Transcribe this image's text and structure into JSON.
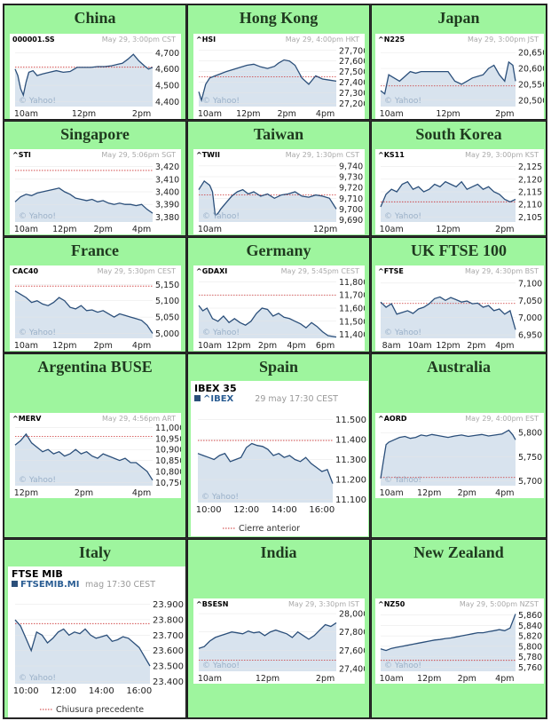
{
  "colors": {
    "cell_bg": "#9ef59e",
    "plot_fill": "#d8e3ee",
    "line": "#2b4f7a",
    "prev_close_line": "#cc3333",
    "watermark": "#9ab0c8"
  },
  "watermark_text": "© Yahoo!",
  "chart_data": [
    {
      "type": "line",
      "title": "China",
      "symbol": "000001.SS",
      "timestamp": "May 29, 3:00pm CST",
      "y_ticks": [
        "4,700",
        "4,600",
        "4,500",
        "4,400"
      ],
      "ylim": [
        4370,
        4740
      ],
      "x_ticks": [
        "10am",
        "12pm",
        "2pm"
      ],
      "prev_close": 4611,
      "x": [
        0,
        0.02,
        0.04,
        0.06,
        0.08,
        0.1,
        0.13,
        0.16,
        0.2,
        0.25,
        0.3,
        0.35,
        0.4,
        0.45,
        0.5,
        0.55,
        0.6,
        0.65,
        0.7,
        0.75,
        0.78,
        0.82,
        0.86,
        0.9,
        0.94,
        0.97,
        1.0
      ],
      "y": [
        4600,
        4560,
        4480,
        4440,
        4520,
        4580,
        4590,
        4560,
        4570,
        4580,
        4590,
        4580,
        4585,
        4610,
        4610,
        4610,
        4615,
        4615,
        4620,
        4630,
        4635,
        4660,
        4690,
        4650,
        4620,
        4600,
        4610
      ]
    },
    {
      "type": "line",
      "title": "Hong Kong",
      "symbol": "^HSI",
      "timestamp": "May 29, 4:00pm HKT",
      "y_ticks": [
        "27,700",
        "27,600",
        "27,500",
        "27,400",
        "27,300",
        "27,200"
      ],
      "ylim": [
        27170,
        27740
      ],
      "x_ticks": [
        "10am",
        "12pm",
        "2pm",
        "4pm"
      ],
      "prev_close": 27450,
      "x": [
        0,
        0.02,
        0.05,
        0.08,
        0.12,
        0.16,
        0.2,
        0.25,
        0.3,
        0.35,
        0.4,
        0.45,
        0.5,
        0.55,
        0.58,
        0.62,
        0.66,
        0.7,
        0.75,
        0.8,
        0.85,
        0.9,
        0.95,
        1.0
      ],
      "y": [
        27310,
        27230,
        27380,
        27440,
        27460,
        27480,
        27500,
        27520,
        27540,
        27560,
        27570,
        27545,
        27530,
        27550,
        27580,
        27610,
        27600,
        27560,
        27440,
        27380,
        27460,
        27430,
        27420,
        27410
      ]
    },
    {
      "type": "line",
      "title": "Japan",
      "symbol": "^N225",
      "timestamp": "May 29, 3:00pm JST",
      "y_ticks": [
        "20,650",
        "20,600",
        "20,550",
        "20,500"
      ],
      "ylim": [
        20480,
        20670
      ],
      "x_ticks": [
        "10am",
        "12pm",
        "2pm"
      ],
      "prev_close": 20545,
      "x": [
        0,
        0.03,
        0.06,
        0.1,
        0.14,
        0.18,
        0.22,
        0.26,
        0.3,
        0.34,
        0.38,
        0.42,
        0.46,
        0.5,
        0.55,
        0.6,
        0.64,
        0.68,
        0.72,
        0.76,
        0.8,
        0.84,
        0.88,
        0.92,
        0.95,
        0.98,
        1.0
      ],
      "y": [
        20530,
        20520,
        20580,
        20570,
        20560,
        20575,
        20590,
        20585,
        20590,
        20590,
        20590,
        20590,
        20590,
        20590,
        20560,
        20550,
        20560,
        20570,
        20575,
        20580,
        20600,
        20610,
        20580,
        20560,
        20620,
        20610,
        20560
      ]
    },
    {
      "type": "line",
      "title": "Singapore",
      "symbol": "^STI",
      "timestamp": "May 29, 5:06pm SGT",
      "y_ticks": [
        "3,420",
        "3,410",
        "3,400",
        "3,390",
        "3,380"
      ],
      "ylim": [
        3376,
        3424
      ],
      "x_ticks": [
        "10am",
        "12pm",
        "2pm",
        "4pm"
      ],
      "prev_close": 3417,
      "x": [
        0,
        0.04,
        0.08,
        0.12,
        0.16,
        0.2,
        0.24,
        0.28,
        0.32,
        0.36,
        0.4,
        0.44,
        0.48,
        0.52,
        0.56,
        0.6,
        0.64,
        0.68,
        0.72,
        0.76,
        0.8,
        0.84,
        0.88,
        0.92,
        0.96,
        1.0
      ],
      "y": [
        3392,
        3396,
        3398,
        3397,
        3399,
        3400,
        3401,
        3402,
        3403,
        3400,
        3398,
        3395,
        3394,
        3393,
        3394,
        3392,
        3393,
        3391,
        3390,
        3391,
        3390,
        3390,
        3389,
        3390,
        3386,
        3383
      ]
    },
    {
      "type": "line",
      "title": "Taiwan",
      "symbol": "^TWII",
      "timestamp": "May 29, 1:30pm CST",
      "y_ticks": [
        "9,740",
        "9,730",
        "9,720",
        "9,710",
        "9,700",
        "9,690"
      ],
      "ylim": [
        9688,
        9744
      ],
      "x_ticks": [
        "10am",
        "12pm"
      ],
      "prev_close": 9713,
      "x": [
        0,
        0.04,
        0.08,
        0.1,
        0.12,
        0.14,
        0.16,
        0.2,
        0.24,
        0.28,
        0.32,
        0.36,
        0.4,
        0.45,
        0.5,
        0.55,
        0.6,
        0.65,
        0.7,
        0.75,
        0.8,
        0.85,
        0.9,
        0.95,
        1.0
      ],
      "y": [
        9718,
        9726,
        9722,
        9716,
        9694,
        9696,
        9700,
        9706,
        9712,
        9716,
        9718,
        9714,
        9716,
        9712,
        9714,
        9710,
        9713,
        9714,
        9716,
        9712,
        9711,
        9713,
        9712,
        9710,
        9700
      ]
    },
    {
      "type": "line",
      "title": "South Korea",
      "symbol": "^KS11",
      "timestamp": "May 29, 3:00pm KST",
      "y_ticks": [
        "2,125",
        "2,120",
        "2,115",
        "2,110",
        "2,105"
      ],
      "ylim": [
        2103,
        2127
      ],
      "x_ticks": [
        "10am",
        "12pm",
        "2pm"
      ],
      "prev_close": 2111,
      "x": [
        0,
        0.04,
        0.08,
        0.12,
        0.16,
        0.2,
        0.24,
        0.28,
        0.32,
        0.36,
        0.4,
        0.44,
        0.48,
        0.52,
        0.56,
        0.6,
        0.64,
        0.68,
        0.72,
        0.76,
        0.8,
        0.84,
        0.88,
        0.92,
        0.96,
        1.0
      ],
      "y": [
        2109,
        2114,
        2116,
        2115,
        2118,
        2119,
        2116,
        2117,
        2115,
        2116,
        2118,
        2117,
        2119,
        2118,
        2117,
        2119,
        2116,
        2117,
        2118,
        2116,
        2117,
        2115,
        2114,
        2112,
        2111,
        2112
      ]
    },
    {
      "type": "line",
      "title": "France",
      "symbol": "CAC40",
      "timestamp": "May 29, 5:30pm CEST",
      "y_ticks": [
        "5,150",
        "5,100",
        "5,050",
        "5,000"
      ],
      "ylim": [
        4985,
        5170
      ],
      "x_ticks": [
        "10am",
        "12pm",
        "2pm",
        "4pm"
      ],
      "prev_close": 5145,
      "x": [
        0,
        0.04,
        0.08,
        0.12,
        0.16,
        0.2,
        0.24,
        0.28,
        0.32,
        0.36,
        0.4,
        0.44,
        0.48,
        0.52,
        0.56,
        0.6,
        0.64,
        0.68,
        0.72,
        0.76,
        0.8,
        0.84,
        0.88,
        0.92,
        0.96,
        1.0
      ],
      "y": [
        5130,
        5120,
        5110,
        5095,
        5100,
        5090,
        5085,
        5095,
        5110,
        5100,
        5080,
        5075,
        5085,
        5070,
        5072,
        5065,
        5070,
        5060,
        5050,
        5060,
        5055,
        5050,
        5045,
        5040,
        5025,
        5000
      ]
    },
    {
      "type": "line",
      "title": "Germany",
      "symbol": "^GDAXI",
      "timestamp": "May 29, 5:45pm CEST",
      "y_ticks": [
        "11,800",
        "11,700",
        "11,600",
        "11,500",
        "11,400"
      ],
      "ylim": [
        11370,
        11830
      ],
      "x_ticks": [
        "10am",
        "12pm",
        "2pm",
        "4pm",
        "6pm"
      ],
      "prev_close": 11700,
      "x": [
        0,
        0.03,
        0.06,
        0.1,
        0.14,
        0.18,
        0.22,
        0.26,
        0.3,
        0.34,
        0.38,
        0.42,
        0.46,
        0.5,
        0.54,
        0.58,
        0.62,
        0.66,
        0.7,
        0.74,
        0.78,
        0.82,
        0.86,
        0.9,
        0.94,
        1.0
      ],
      "y": [
        11620,
        11580,
        11600,
        11520,
        11500,
        11540,
        11490,
        11520,
        11490,
        11470,
        11500,
        11560,
        11600,
        11590,
        11540,
        11560,
        11530,
        11520,
        11500,
        11480,
        11450,
        11490,
        11460,
        11420,
        11390,
        11380
      ]
    },
    {
      "type": "line",
      "title": "UK FTSE 100",
      "symbol": "^FTSE",
      "timestamp": "May 29, 4:30pm BST",
      "y_ticks": [
        "7,100",
        "7,050",
        "7,000",
        "6,950"
      ],
      "ylim": [
        6940,
        7115
      ],
      "x_ticks": [
        "8am",
        "10am",
        "12pm",
        "2pm",
        "4pm"
      ],
      "prev_close": 7041,
      "x": [
        0,
        0.04,
        0.08,
        0.12,
        0.16,
        0.2,
        0.24,
        0.28,
        0.32,
        0.36,
        0.4,
        0.44,
        0.48,
        0.52,
        0.56,
        0.6,
        0.64,
        0.68,
        0.72,
        0.76,
        0.8,
        0.84,
        0.88,
        0.92,
        0.96,
        1.0
      ],
      "y": [
        7045,
        7030,
        7040,
        7010,
        7015,
        7020,
        7012,
        7025,
        7030,
        7040,
        7055,
        7060,
        7050,
        7058,
        7052,
        7045,
        7048,
        7040,
        7042,
        7030,
        7035,
        7020,
        7025,
        7010,
        7020,
        6965
      ]
    },
    {
      "type": "line",
      "title": "Argentina BUSE",
      "symbol": "^MERV",
      "timestamp": "May 29, 4:56pm ART",
      "y_ticks": [
        "11,000",
        "10,950",
        "10,900",
        "10,850",
        "10,800",
        "10,750"
      ],
      "ylim": [
        10735,
        11010
      ],
      "x_ticks": [
        "12pm",
        "2pm",
        "4pm"
      ],
      "prev_close": 10960,
      "x": [
        0,
        0.04,
        0.08,
        0.12,
        0.16,
        0.2,
        0.24,
        0.28,
        0.32,
        0.36,
        0.4,
        0.44,
        0.48,
        0.52,
        0.56,
        0.6,
        0.64,
        0.68,
        0.72,
        0.76,
        0.8,
        0.84,
        0.88,
        0.92,
        0.96,
        1.0
      ],
      "y": [
        10920,
        10940,
        10970,
        10930,
        10910,
        10890,
        10900,
        10880,
        10890,
        10870,
        10880,
        10900,
        10880,
        10890,
        10870,
        10860,
        10880,
        10870,
        10860,
        10850,
        10860,
        10840,
        10840,
        10820,
        10800,
        10760
      ]
    },
    {
      "type": "line",
      "title": "Spain",
      "symbol": "IBEX 35",
      "link": "^IBEX",
      "timestamp": "29 may 17:30 CEST",
      "y_ticks": [
        "11.500",
        "11.400",
        "11.300",
        "11.200",
        "11.100"
      ],
      "ylim": [
        11085,
        11515
      ],
      "x_ticks": [
        "10:00",
        "12:00",
        "14:00",
        "16:00"
      ],
      "prev_close": 11395,
      "legend": "Cierre anterior",
      "x": [
        0,
        0.04,
        0.08,
        0.12,
        0.16,
        0.2,
        0.24,
        0.28,
        0.32,
        0.36,
        0.4,
        0.44,
        0.48,
        0.52,
        0.56,
        0.6,
        0.64,
        0.68,
        0.72,
        0.76,
        0.8,
        0.84,
        0.88,
        0.92,
        0.96,
        1.0
      ],
      "y": [
        11330,
        11320,
        11310,
        11300,
        11320,
        11330,
        11290,
        11300,
        11310,
        11360,
        11380,
        11370,
        11365,
        11350,
        11320,
        11330,
        11310,
        11320,
        11300,
        11290,
        11310,
        11280,
        11260,
        11240,
        11250,
        11180
      ]
    },
    {
      "type": "line",
      "title": "Australia",
      "symbol": "^AORD",
      "timestamp": "May 29, 4:00pm EST",
      "y_ticks": [
        "5,800",
        "5,750",
        "5,700"
      ],
      "ylim": [
        5690,
        5815
      ],
      "x_ticks": [
        "10am",
        "12pm",
        "2pm",
        "4pm"
      ],
      "prev_close": 5707,
      "x": [
        0,
        0.02,
        0.04,
        0.06,
        0.1,
        0.14,
        0.18,
        0.22,
        0.26,
        0.3,
        0.34,
        0.38,
        0.42,
        0.46,
        0.5,
        0.55,
        0.6,
        0.65,
        0.7,
        0.75,
        0.8,
        0.85,
        0.9,
        0.95,
        0.98,
        1.0
      ],
      "y": [
        5705,
        5740,
        5775,
        5780,
        5785,
        5790,
        5792,
        5788,
        5790,
        5795,
        5793,
        5796,
        5794,
        5792,
        5790,
        5793,
        5795,
        5792,
        5794,
        5796,
        5793,
        5795,
        5797,
        5805,
        5795,
        5785
      ]
    },
    {
      "type": "line",
      "title": "Italy",
      "symbol": "FTSE MIB",
      "link": "FTSEMIB.MI",
      "timestamp": "mag 17:30 CEST",
      "y_ticks": [
        "23.900",
        "23.800",
        "23.700",
        "23.600",
        "23.500",
        "23.400"
      ],
      "ylim": [
        23385,
        23915
      ],
      "x_ticks": [
        "10:00",
        "12:00",
        "14:00",
        "16:00"
      ],
      "prev_close": 23775,
      "legend": "Chiusura precedente",
      "x": [
        0,
        0.04,
        0.08,
        0.12,
        0.16,
        0.2,
        0.24,
        0.28,
        0.32,
        0.36,
        0.4,
        0.44,
        0.48,
        0.52,
        0.56,
        0.6,
        0.64,
        0.68,
        0.72,
        0.76,
        0.8,
        0.84,
        0.88,
        0.92,
        0.96,
        1.0
      ],
      "y": [
        23800,
        23760,
        23680,
        23600,
        23720,
        23700,
        23650,
        23680,
        23720,
        23740,
        23700,
        23720,
        23710,
        23740,
        23700,
        23680,
        23690,
        23700,
        23660,
        23670,
        23690,
        23680,
        23650,
        23620,
        23560,
        23500
      ]
    },
    {
      "type": "line",
      "title": "India",
      "symbol": "^BSESN",
      "timestamp": "May 29, 3:30pm IST",
      "y_ticks": [
        "28,000",
        "27,800",
        "27,600",
        "27,400"
      ],
      "ylim": [
        27370,
        28030
      ],
      "x_ticks": [
        "10am",
        "12pm",
        "2pm"
      ],
      "prev_close": 27490,
      "x": [
        0,
        0.04,
        0.08,
        0.12,
        0.16,
        0.2,
        0.24,
        0.28,
        0.32,
        0.36,
        0.4,
        0.44,
        0.48,
        0.52,
        0.56,
        0.6,
        0.64,
        0.68,
        0.72,
        0.76,
        0.8,
        0.84,
        0.88,
        0.92,
        0.96,
        1.0
      ],
      "y": [
        27620,
        27640,
        27700,
        27740,
        27760,
        27780,
        27800,
        27790,
        27780,
        27810,
        27790,
        27800,
        27760,
        27800,
        27820,
        27800,
        27780,
        27740,
        27800,
        27760,
        27720,
        27760,
        27820,
        27880,
        27860,
        27900
      ]
    },
    {
      "type": "line",
      "title": "New Zealand",
      "symbol": "^NZ50",
      "timestamp": "May 29, 5:00pm NZST",
      "y_ticks": [
        "5,860",
        "5,840",
        "5,820",
        "5,800",
        "5,780",
        "5,760"
      ],
      "ylim": [
        5752,
        5868
      ],
      "x_ticks": [
        "10am",
        "12pm",
        "2pm",
        "4pm"
      ],
      "prev_close": 5773,
      "x": [
        0,
        0.04,
        0.08,
        0.12,
        0.16,
        0.2,
        0.24,
        0.28,
        0.32,
        0.36,
        0.4,
        0.44,
        0.48,
        0.52,
        0.56,
        0.6,
        0.64,
        0.68,
        0.72,
        0.76,
        0.8,
        0.84,
        0.88,
        0.92,
        0.96,
        1.0
      ],
      "y": [
        5795,
        5792,
        5796,
        5798,
        5800,
        5802,
        5804,
        5806,
        5808,
        5810,
        5812,
        5813,
        5815,
        5816,
        5818,
        5820,
        5822,
        5824,
        5826,
        5826,
        5828,
        5830,
        5832,
        5830,
        5835,
        5862
      ]
    }
  ]
}
